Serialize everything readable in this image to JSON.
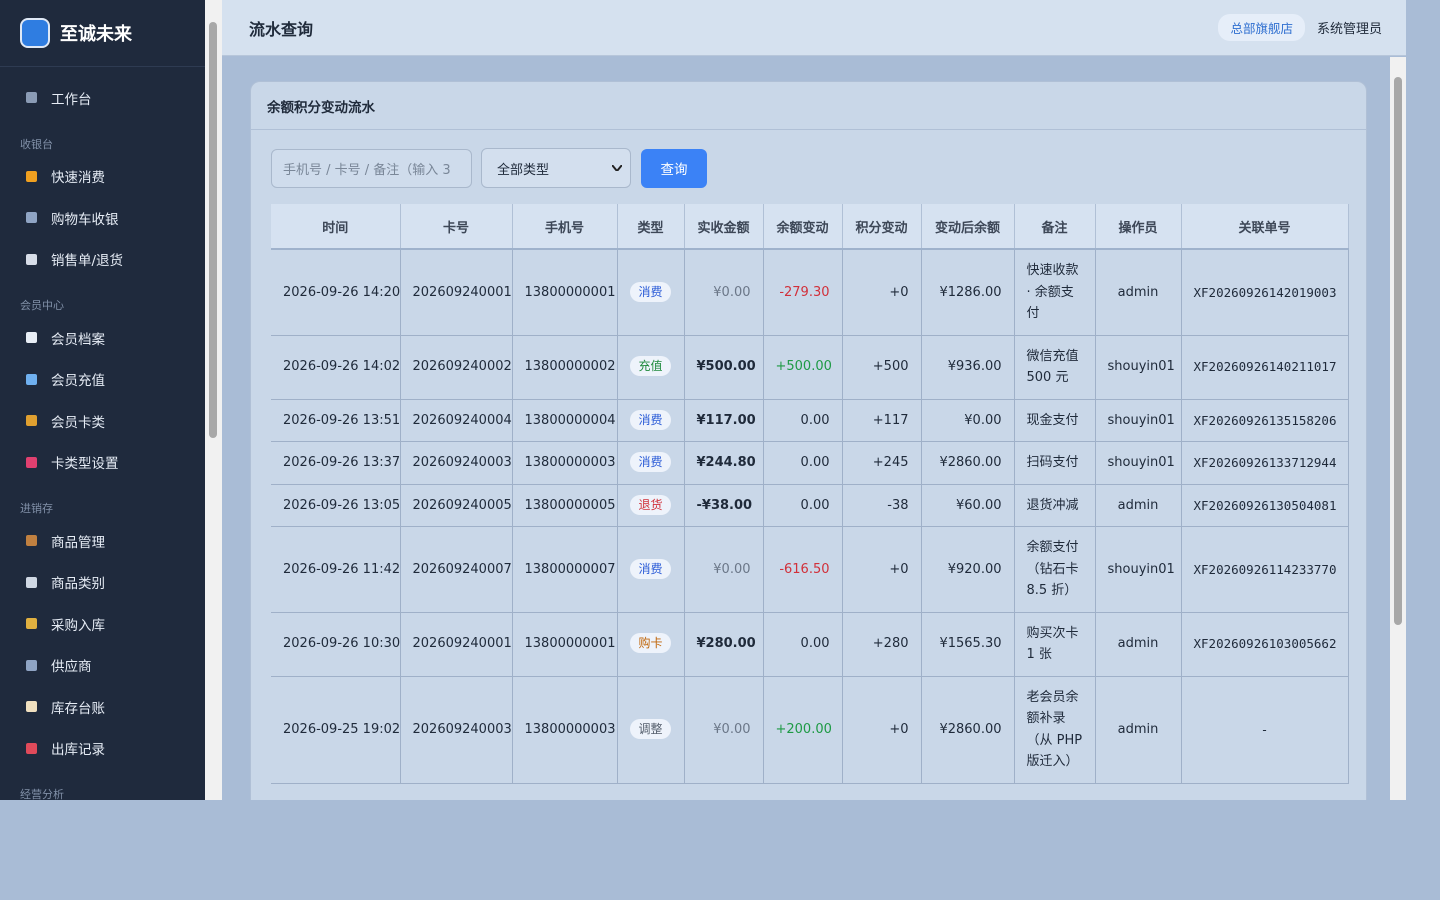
{
  "sidebar": {
    "brand": "至诚未来",
    "home": "工作台",
    "groups": [
      {
        "title": "收银台",
        "items": [
          "快速消费",
          "购物车收银",
          "销售单/退货"
        ]
      },
      {
        "title": "会员中心",
        "items": [
          "会员档案",
          "会员充值",
          "会员卡类",
          "卡类型设置"
        ]
      },
      {
        "title": "进销存",
        "items": [
          "商品管理",
          "商品类别",
          "采购入库",
          "供应商",
          "库存台账",
          "出库记录"
        ]
      },
      {
        "title": "经营分析"
      }
    ]
  },
  "header": {
    "title": "流水查询",
    "store": "总部旗舰店",
    "user": "系统管理员"
  },
  "card": {
    "title": "余额积分变动流水",
    "search_placeholder": "手机号 / 卡号 / 备注（输入 3",
    "filter": "全部类型",
    "button": "查询"
  },
  "table": {
    "columns": [
      "时间",
      "卡号",
      "手机号",
      "类型",
      "实收金额",
      "余额变动",
      "积分变动",
      "变动后余额",
      "备注",
      "操作员",
      "关联单号"
    ],
    "rows": [
      {
        "tag_color": "#2a5bd7",
        "cells": [
          "2026-09-26 14:20",
          "202609240001",
          "13800000001",
          "消费",
          "¥0.00",
          "-279.30",
          "+0",
          "¥1286.00",
          "快速收款 · 余额支付",
          "admin",
          "XF20260926142019003"
        ]
      },
      {
        "tag_color": "#1e8a3c",
        "cells": [
          "2026-09-26 14:02",
          "202609240002",
          "13800000002",
          "充值",
          "¥500.00",
          "+500.00",
          "+500",
          "¥936.00",
          "微信充值 500 元",
          "shouyin01",
          "XF20260926140211017"
        ]
      },
      {
        "tag_color": "#2a5bd7",
        "cells": [
          "2026-09-26 13:51",
          "202609240004",
          "13800000004",
          "消费",
          "¥117.00",
          "0.00",
          "+117",
          "¥0.00",
          "现金支付",
          "shouyin01",
          "XF20260926135158206"
        ]
      },
      {
        "tag_color": "#2a5bd7",
        "cells": [
          "2026-09-26 13:37",
          "202609240003",
          "13800000003",
          "消费",
          "¥244.80",
          "0.00",
          "+245",
          "¥2860.00",
          "扫码支付",
          "shouyin01",
          "XF20260926133712944"
        ]
      },
      {
        "tag_color": "#d1303a",
        "cells": [
          "2026-09-26 13:05",
          "202609240005",
          "13800000005",
          "退货",
          "-¥38.00",
          "0.00",
          "-38",
          "¥60.00",
          "退货冲减",
          "admin",
          "XF20260926130504081"
        ]
      },
      {
        "tag_color": "#2a5bd7",
        "cells": [
          "2026-09-26 11:42",
          "202609240007",
          "13800000007",
          "消费",
          "¥0.00",
          "-616.50",
          "+0",
          "¥920.00",
          "余额支付（钻石卡 8.5 折）",
          "shouyin01",
          "XF20260926114233770"
        ]
      },
      {
        "tag_color": "#c0660a",
        "cells": [
          "2026-09-26 10:30",
          "202609240001",
          "13800000001",
          "购卡",
          "¥280.00",
          "0.00",
          "+280",
          "¥1565.30",
          "购买次卡 1 张",
          "admin",
          "XF20260926103005662"
        ]
      },
      {
        "tag_color": "#555f6d",
        "cells": [
          "2026-09-25 19:02",
          "202609240003",
          "13800000003",
          "调整",
          "¥0.00",
          "+200.00",
          "+0",
          "¥2860.00",
          "老会员余额补录（从 PHP 版迁入）",
          "admin",
          "-"
        ]
      }
    ]
  }
}
